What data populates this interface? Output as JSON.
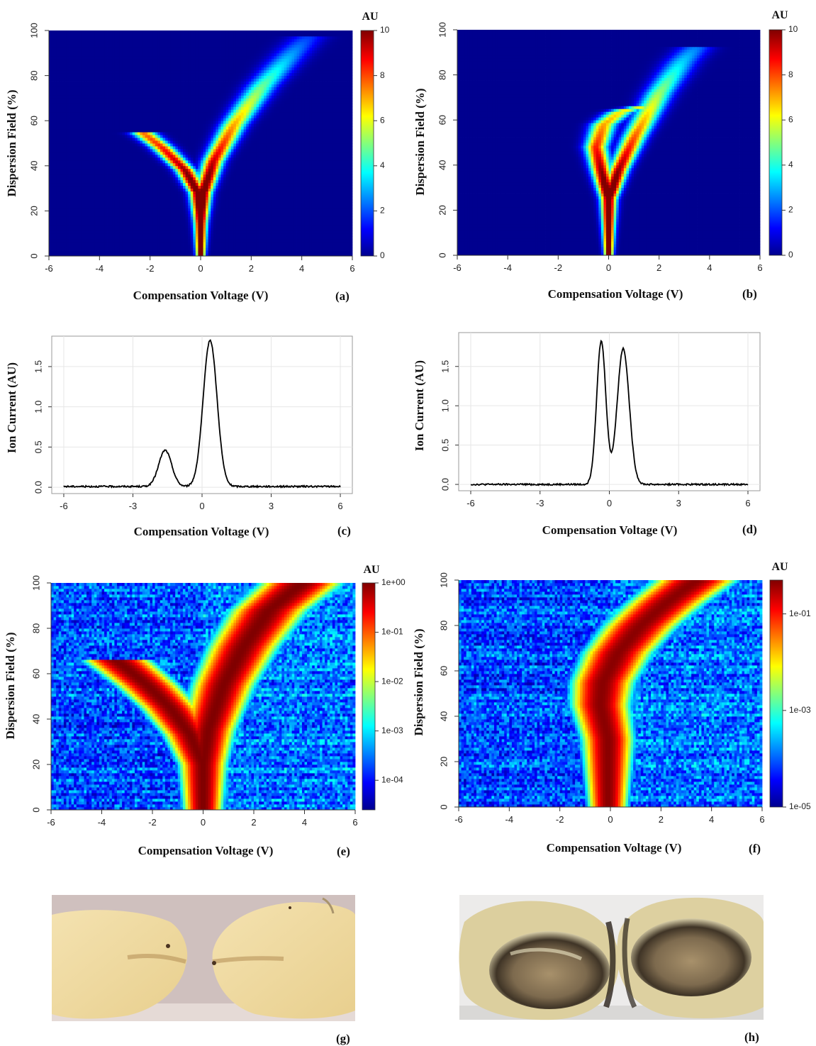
{
  "colors": {
    "jet": [
      "#00008f",
      "#0000ff",
      "#00ffff",
      "#ffff00",
      "#ff0000",
      "#800000"
    ],
    "line": "#000000",
    "grid": "#e6e6e6"
  },
  "chart_data": [
    {
      "id": "a",
      "type": "heatmap",
      "panel_label": "(a)",
      "xlabel": "Compensation Voltage (V)",
      "ylabel": "Dispersion Field (%)",
      "xlim": [
        -6,
        6
      ],
      "ylim": [
        0,
        100
      ],
      "xticks": [
        "-6",
        "-4",
        "-2",
        "0",
        "2",
        "4",
        "6"
      ],
      "yticks": [
        "0",
        "20",
        "40",
        "60",
        "80",
        "100"
      ],
      "colorbar": {
        "title": "AU",
        "scale": "linear",
        "range": [
          0,
          10
        ],
        "ticks": [
          "0",
          "2",
          "4",
          "6",
          "8",
          "10"
        ]
      },
      "branches": [
        {
          "points": [
            [
              0.0,
              0
            ],
            [
              0.0,
              15
            ],
            [
              -0.1,
              28
            ],
            [
              -0.6,
              38
            ],
            [
              -1.5,
              48
            ],
            [
              -2.3,
              55
            ]
          ],
          "peak": 10
        },
        {
          "points": [
            [
              0.0,
              0
            ],
            [
              0.0,
              15
            ],
            [
              0.1,
              28
            ],
            [
              0.5,
              42
            ],
            [
              1.3,
              58
            ],
            [
              2.4,
              75
            ],
            [
              3.6,
              90
            ],
            [
              4.3,
              98
            ]
          ],
          "peak": 10
        }
      ]
    },
    {
      "id": "b",
      "type": "heatmap",
      "panel_label": "(b)",
      "xlabel": "Compensation Voltage (V)",
      "ylabel": "Dispersion Field (%)",
      "xlim": [
        -6,
        6
      ],
      "ylim": [
        0,
        100
      ],
      "xticks": [
        "-6",
        "-4",
        "-2",
        "0",
        "2",
        "4",
        "6"
      ],
      "yticks": [
        "0",
        "20",
        "40",
        "60",
        "80",
        "100"
      ],
      "colorbar": {
        "title": "AU",
        "scale": "linear",
        "range": [
          0,
          10
        ],
        "ticks": [
          "0",
          "2",
          "4",
          "6",
          "8",
          "10"
        ]
      },
      "branches": [
        {
          "points": [
            [
              0.0,
              0
            ],
            [
              0.0,
              25
            ],
            [
              -0.3,
              38
            ],
            [
              -0.5,
              48
            ],
            [
              -0.2,
              58
            ],
            [
              0.5,
              64
            ],
            [
              1.4,
              66
            ]
          ],
          "peak": 10
        },
        {
          "points": [
            [
              0.0,
              0
            ],
            [
              0.0,
              25
            ],
            [
              0.4,
              38
            ],
            [
              1.0,
              52
            ],
            [
              2.0,
              72
            ],
            [
              2.9,
              86
            ],
            [
              3.5,
              93
            ]
          ],
          "peak": 10
        }
      ]
    },
    {
      "id": "c",
      "type": "line",
      "panel_label": "(c)",
      "xlabel": "Compensation Voltage (V)",
      "ylabel": "Ion Current (AU)",
      "xlim": [
        -6,
        6
      ],
      "ylim": [
        0,
        1.8
      ],
      "xticks": [
        "-6",
        "-3",
        "0",
        "3",
        "6"
      ],
      "yticks": [
        "0.0",
        "0.5",
        "1.0",
        "1.5"
      ],
      "series": [
        {
          "peaks": [
            {
              "center": -1.6,
              "height": 0.45,
              "width": 0.28
            },
            {
              "center": 0.35,
              "height": 1.82,
              "width": 0.3
            }
          ],
          "baseline": 0.01
        }
      ]
    },
    {
      "id": "d",
      "type": "line",
      "panel_label": "(d)",
      "xlabel": "Compensation Voltage (V)",
      "ylabel": "Ion Current (AU)",
      "xlim": [
        -6,
        6
      ],
      "ylim": [
        0,
        1.85
      ],
      "xticks": [
        "-6",
        "-3",
        "0",
        "3",
        "6"
      ],
      "yticks": [
        "0.0",
        "0.5",
        "1.0",
        "1.5"
      ],
      "series": [
        {
          "peaks": [
            {
              "center": -0.35,
              "height": 1.82,
              "width": 0.2
            },
            {
              "center": 0.6,
              "height": 1.73,
              "width": 0.26
            }
          ],
          "baseline": 0.0
        }
      ]
    },
    {
      "id": "e",
      "type": "heatmap",
      "panel_label": "(e)",
      "xlabel": "Compensation Voltage (V)",
      "ylabel": "Dispersion Field (%)",
      "xlim": [
        -6,
        6
      ],
      "ylim": [
        0,
        100
      ],
      "xticks": [
        "-6",
        "-4",
        "-2",
        "0",
        "2",
        "4",
        "6"
      ],
      "yticks": [
        "0",
        "20",
        "40",
        "60",
        "80",
        "100"
      ],
      "colorbar": {
        "title": "AU",
        "scale": "log",
        "range": [
          -4.6,
          0
        ],
        "ticks": [
          "1e-04",
          "1e-03",
          "1e-02",
          "1e-01",
          "1e+00"
        ]
      },
      "branches": [
        {
          "points": [
            [
              0.0,
              0
            ],
            [
              0.0,
              20
            ],
            [
              -0.5,
              33
            ],
            [
              -1.3,
              45
            ],
            [
              -2.2,
              55
            ],
            [
              -3.4,
              66
            ]
          ],
          "peak": 0
        },
        {
          "points": [
            [
              0.0,
              0
            ],
            [
              0.0,
              20
            ],
            [
              0.2,
              35
            ],
            [
              0.8,
              55
            ],
            [
              1.6,
              72
            ],
            [
              2.6,
              88
            ],
            [
              3.9,
              100
            ]
          ],
          "peak": 0
        }
      ]
    },
    {
      "id": "f",
      "type": "heatmap",
      "panel_label": "(f)",
      "xlabel": "Compensation Voltage (V)",
      "ylabel": "Dispersion Field (%)",
      "xlim": [
        -6,
        6
      ],
      "ylim": [
        0,
        100
      ],
      "xticks": [
        "-6",
        "-4",
        "-2",
        "0",
        "2",
        "4",
        "6"
      ],
      "yticks": [
        "0",
        "20",
        "40",
        "60",
        "80",
        "100"
      ],
      "colorbar": {
        "title": "AU",
        "scale": "log",
        "range": [
          -5,
          -0.3
        ],
        "ticks": [
          "1e-05",
          "1e-03",
          "1e-01"
        ]
      },
      "branches": [
        {
          "points": [
            [
              -0.1,
              0
            ],
            [
              -0.1,
              30
            ],
            [
              -0.4,
              45
            ],
            [
              -0.3,
              55
            ],
            [
              0.3,
              68
            ],
            [
              1.2,
              80
            ],
            [
              2.2,
              90
            ],
            [
              3.4,
              100
            ]
          ],
          "peak": -0.35
        }
      ]
    }
  ],
  "photos": [
    {
      "id": "g",
      "panel_label": "(g)",
      "image": "cut potato, healthy"
    },
    {
      "id": "h",
      "panel_label": "(h)",
      "image": "cut potato, rotten"
    }
  ]
}
